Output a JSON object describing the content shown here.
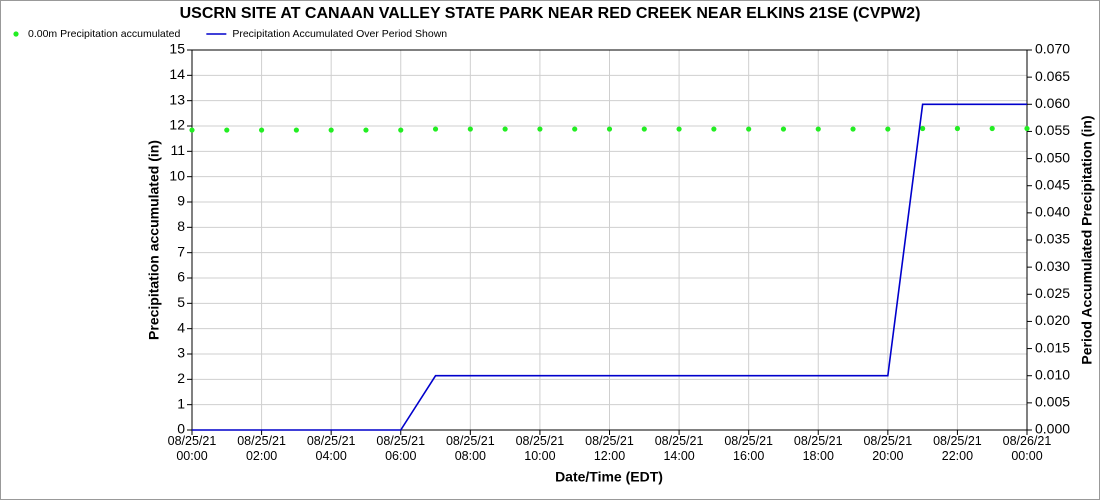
{
  "chart_data": {
    "type": "line",
    "title": "USCRN SITE AT CANAAN VALLEY STATE PARK NEAR RED CREEK NEAR ELKINS 21SE (CVPW2)",
    "xlabel": "Date/Time (EDT)",
    "ylabel": "Precipitation accumulated (in)",
    "y2label": "Period Accumulated Precipitation (in)",
    "x": [
      "08/25/21 00:00",
      "08/25/21 01:00",
      "08/25/21 02:00",
      "08/25/21 03:00",
      "08/25/21 04:00",
      "08/25/21 05:00",
      "08/25/21 06:00",
      "08/25/21 07:00",
      "08/25/21 08:00",
      "08/25/21 09:00",
      "08/25/21 10:00",
      "08/25/21 11:00",
      "08/25/21 12:00",
      "08/25/21 13:00",
      "08/25/21 14:00",
      "08/25/21 15:00",
      "08/25/21 16:00",
      "08/25/21 17:00",
      "08/25/21 18:00",
      "08/25/21 19:00",
      "08/25/21 20:00",
      "08/25/21 21:00",
      "08/25/21 22:00",
      "08/25/21 23:00",
      "08/26/21 00:00"
    ],
    "series": [
      {
        "name": "0.00m Precipitation accumulated",
        "type": "scatter",
        "color": "#22ee22",
        "axis": "y",
        "values": [
          11.84,
          11.84,
          11.84,
          11.84,
          11.84,
          11.84,
          11.84,
          11.88,
          11.88,
          11.88,
          11.88,
          11.88,
          11.88,
          11.88,
          11.88,
          11.88,
          11.88,
          11.88,
          11.88,
          11.88,
          11.88,
          11.9,
          11.9,
          11.9,
          11.9
        ]
      },
      {
        "name": "Precipitation Accumulated Over Period Shown",
        "type": "line",
        "color": "#0000cc",
        "axis": "y2",
        "values": [
          0,
          0,
          0,
          0,
          0,
          0,
          0,
          0.01,
          0.01,
          0.01,
          0.01,
          0.01,
          0.01,
          0.01,
          0.01,
          0.01,
          0.01,
          0.01,
          0.01,
          0.01,
          0.01,
          0.06,
          0.06,
          0.06,
          0.06
        ]
      }
    ],
    "xlim": [
      "08/25/21 00:00",
      "08/26/21 00:00"
    ],
    "xticks": [
      "08/25/21 00:00",
      "08/25/21 02:00",
      "08/25/21 04:00",
      "08/25/21 06:00",
      "08/25/21 08:00",
      "08/25/21 10:00",
      "08/25/21 12:00",
      "08/25/21 14:00",
      "08/25/21 16:00",
      "08/25/21 18:00",
      "08/25/21 20:00",
      "08/25/21 22:00",
      "08/26/21 00:00"
    ],
    "ylim": [
      0,
      15
    ],
    "yticks": [
      0,
      1,
      2,
      3,
      4,
      5,
      6,
      7,
      8,
      9,
      10,
      11,
      12,
      13,
      14,
      15
    ],
    "y2lim": [
      0,
      0.07
    ],
    "y2ticks": [
      {
        "value": 0,
        "label": "0.000"
      },
      {
        "value": 0.005,
        "label": "0.005"
      },
      {
        "value": 0.01,
        "label": "0.010"
      },
      {
        "value": 0.015,
        "label": "0.015"
      },
      {
        "value": 0.02,
        "label": "0.020"
      },
      {
        "value": 0.025,
        "label": "0.025"
      },
      {
        "value": 0.03,
        "label": "0.030"
      },
      {
        "value": 0.035,
        "label": "0.035"
      },
      {
        "value": 0.04,
        "label": "0.040"
      },
      {
        "value": 0.045,
        "label": "0.045"
      },
      {
        "value": 0.05,
        "label": "0.050"
      },
      {
        "value": 0.055,
        "label": "0.055"
      },
      {
        "value": 0.06,
        "label": "0.060"
      },
      {
        "value": 0.065,
        "label": "0.065"
      },
      {
        "value": 0.07,
        "label": "0.070"
      }
    ],
    "grid": true,
    "legend": "top-left"
  }
}
